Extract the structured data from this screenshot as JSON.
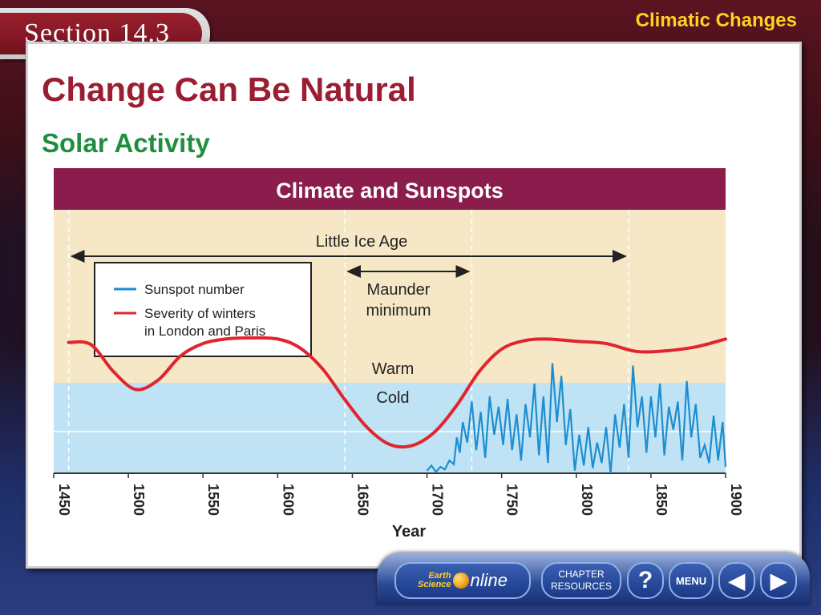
{
  "header": {
    "section_label": "Section 14.3",
    "title": "Climatic Changes"
  },
  "main": {
    "heading": "Change Can Be Natural",
    "subheading": "Solar Activity"
  },
  "chart_data": {
    "type": "line",
    "title": "Climate and Sunspots",
    "xlabel": "Year",
    "xlim": [
      1450,
      1900
    ],
    "x_ticks": [
      "1450",
      "1500",
      "1550",
      "1600",
      "1650",
      "1700",
      "1750",
      "1800",
      "1850",
      "1900"
    ],
    "bands": {
      "warm_label": "Warm",
      "cold_label": "Cold"
    },
    "annotations": [
      {
        "text": "Little Ice Age",
        "x_start": 1460,
        "x_end": 1835
      },
      {
        "text_line1": "Maunder",
        "text_line2": "minimum",
        "x_start": 1645,
        "x_end": 1730
      }
    ],
    "legend": {
      "placement": "top-left",
      "entries": [
        {
          "label": "Sunspot number",
          "color": "#1e8ed0"
        },
        {
          "label_line1": "Severity of winters",
          "label_line2": "in London and Paris",
          "color": "#e0252e"
        }
      ]
    },
    "series": [
      {
        "name": "Severity of winters in London and Paris",
        "color": "#e0252e",
        "x": [
          1460,
          1475,
          1490,
          1505,
          1520,
          1535,
          1550,
          1565,
          1580,
          1600,
          1615,
          1630,
          1645,
          1660,
          1675,
          1690,
          1705,
          1720,
          1735,
          1750,
          1765,
          1780,
          1800,
          1820,
          1840,
          1860,
          1880,
          1900
        ],
        "y": [
          0.72,
          0.68,
          0.2,
          -0.12,
          0.05,
          0.48,
          0.7,
          0.78,
          0.8,
          0.78,
          0.62,
          0.25,
          -0.3,
          -0.8,
          -1.1,
          -1.12,
          -0.88,
          -0.4,
          0.2,
          0.6,
          0.75,
          0.78,
          0.74,
          0.7,
          0.56,
          0.57,
          0.64,
          0.78
        ]
      },
      {
        "name": "Sunspot number",
        "color": "#1e8ed0",
        "x": [
          1700,
          1703,
          1706,
          1709,
          1712,
          1715,
          1718,
          1720,
          1722,
          1724,
          1727,
          1730,
          1733,
          1736,
          1739,
          1742,
          1745,
          1748,
          1751,
          1754,
          1757,
          1760,
          1763,
          1766,
          1769,
          1772,
          1775,
          1778,
          1781,
          1784,
          1787,
          1790,
          1793,
          1796,
          1799,
          1802,
          1805,
          1808,
          1811,
          1814,
          1817,
          1820,
          1823,
          1826,
          1829,
          1832,
          1835,
          1838,
          1841,
          1844,
          1847,
          1850,
          1853,
          1856,
          1859,
          1862,
          1865,
          1868,
          1871,
          1874,
          1877,
          1880,
          1883,
          1886,
          1889,
          1892,
          1895,
          1898,
          1900
        ],
        "y": [
          2,
          6,
          1,
          5,
          3,
          10,
          7,
          28,
          16,
          40,
          24,
          56,
          18,
          48,
          12,
          60,
          30,
          52,
          22,
          58,
          18,
          46,
          10,
          54,
          28,
          70,
          14,
          60,
          8,
          86,
          40,
          76,
          22,
          50,
          2,
          30,
          6,
          36,
          4,
          24,
          8,
          36,
          0,
          46,
          20,
          54,
          12,
          84,
          36,
          60,
          16,
          60,
          28,
          70,
          14,
          52,
          34,
          56,
          10,
          72,
          28,
          54,
          12,
          22,
          8,
          45,
          10,
          40,
          5
        ]
      }
    ]
  },
  "nav": {
    "earth_small_line1": "Earth",
    "earth_small_line2": "Science",
    "earth_online": "nline",
    "chapter_line1": "CHAPTER",
    "chapter_line2": "RESOURCES",
    "help_label": "?",
    "menu_label": "MENU",
    "prev_label": "◀",
    "next_label": "▶"
  }
}
